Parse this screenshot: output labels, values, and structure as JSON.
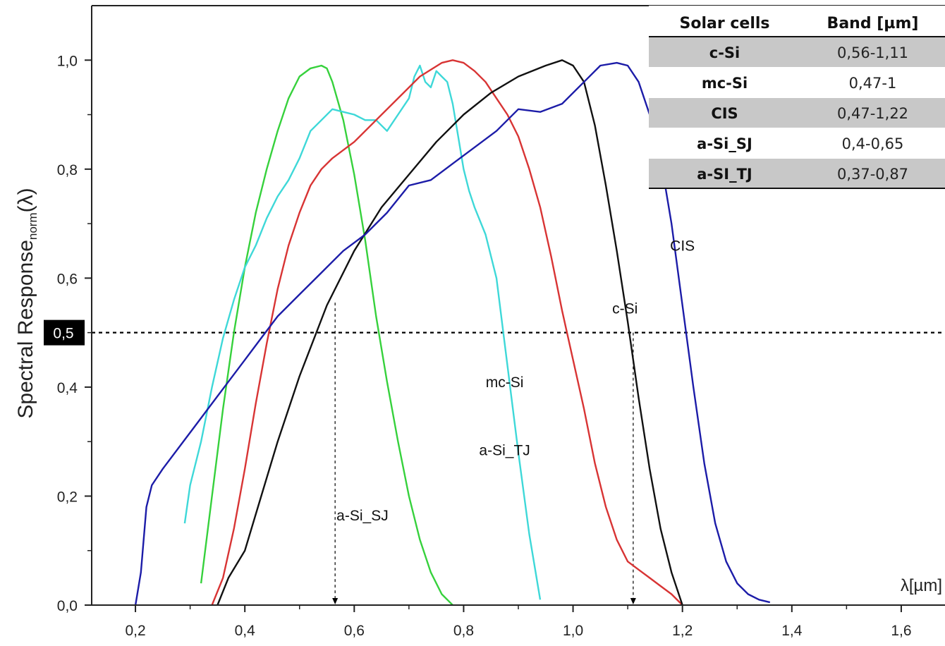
{
  "chart_data": {
    "type": "line",
    "title": "",
    "xlabel": "λ[µm]",
    "ylabel": {
      "main": "Spectral Response",
      "sub": "norm",
      "suffix": "(λ)"
    },
    "xlim": [
      0.12,
      1.68
    ],
    "ylim": [
      0.0,
      1.1
    ],
    "x_ticks": [
      0.2,
      0.4,
      0.6,
      0.8,
      1.0,
      1.2,
      1.4,
      1.6
    ],
    "x_tick_labels": [
      "0,2",
      "0,4",
      "0,6",
      "0,8",
      "1,0",
      "1,2",
      "1,4",
      "1,6"
    ],
    "y_ticks": [
      0.0,
      0.2,
      0.4,
      0.6,
      0.8,
      1.0
    ],
    "y_tick_labels": [
      "0,0",
      "0,2",
      "0,4",
      "0,6",
      "0,8",
      "1,0"
    ],
    "highlight": {
      "value": 0.5,
      "label": "0,5",
      "line_style": "dashed",
      "color": "#000000"
    },
    "markers": [
      {
        "x": 0.565,
        "from": 0.555,
        "to": 0.0
      },
      {
        "x": 1.11,
        "from": 0.5,
        "to": 0.0
      }
    ],
    "series": [
      {
        "name": "a-Si_SJ",
        "color": "#36d13c",
        "label": {
          "text": "a-Si_SJ",
          "x": 0.615,
          "y": 0.155
        },
        "x": [
          0.32,
          0.34,
          0.36,
          0.38,
          0.4,
          0.42,
          0.44,
          0.46,
          0.48,
          0.5,
          0.52,
          0.54,
          0.55,
          0.56,
          0.58,
          0.6,
          0.62,
          0.64,
          0.66,
          0.68,
          0.7,
          0.72,
          0.74,
          0.76,
          0.78
        ],
        "y": [
          0.04,
          0.2,
          0.36,
          0.5,
          0.62,
          0.72,
          0.8,
          0.87,
          0.93,
          0.97,
          0.985,
          0.99,
          0.985,
          0.96,
          0.89,
          0.79,
          0.67,
          0.53,
          0.41,
          0.3,
          0.2,
          0.12,
          0.06,
          0.02,
          0.0
        ]
      },
      {
        "name": "a-Si_TJ",
        "color": "#3ed8d8",
        "label": {
          "text": "a-Si_TJ",
          "x": 0.875,
          "y": 0.275
        },
        "x": [
          0.29,
          0.3,
          0.32,
          0.34,
          0.36,
          0.38,
          0.4,
          0.42,
          0.44,
          0.46,
          0.48,
          0.5,
          0.52,
          0.54,
          0.56,
          0.58,
          0.6,
          0.62,
          0.64,
          0.66,
          0.68,
          0.7,
          0.71,
          0.72,
          0.73,
          0.74,
          0.75,
          0.76,
          0.77,
          0.78,
          0.79,
          0.8,
          0.81,
          0.82,
          0.84,
          0.86,
          0.88,
          0.9,
          0.92,
          0.94
        ],
        "y": [
          0.15,
          0.22,
          0.3,
          0.4,
          0.49,
          0.56,
          0.62,
          0.66,
          0.71,
          0.75,
          0.78,
          0.82,
          0.87,
          0.89,
          0.91,
          0.905,
          0.9,
          0.89,
          0.89,
          0.87,
          0.9,
          0.93,
          0.97,
          0.99,
          0.96,
          0.95,
          0.98,
          0.97,
          0.96,
          0.92,
          0.86,
          0.8,
          0.76,
          0.73,
          0.68,
          0.6,
          0.44,
          0.28,
          0.13,
          0.01
        ]
      },
      {
        "name": "mc-Si",
        "color": "#d83434",
        "label": {
          "text": "mc-Si",
          "x": 0.875,
          "y": 0.4
        },
        "x": [
          0.34,
          0.36,
          0.38,
          0.4,
          0.42,
          0.44,
          0.46,
          0.48,
          0.5,
          0.52,
          0.54,
          0.56,
          0.6,
          0.64,
          0.68,
          0.72,
          0.76,
          0.78,
          0.8,
          0.82,
          0.84,
          0.86,
          0.88,
          0.9,
          0.92,
          0.94,
          0.96,
          0.98,
          1.0,
          1.02,
          1.04,
          1.06,
          1.08,
          1.1,
          1.12,
          1.14,
          1.16,
          1.18,
          1.2
        ],
        "y": [
          0.0,
          0.05,
          0.14,
          0.25,
          0.37,
          0.48,
          0.58,
          0.66,
          0.72,
          0.77,
          0.8,
          0.82,
          0.85,
          0.89,
          0.93,
          0.97,
          0.995,
          1.0,
          0.995,
          0.98,
          0.96,
          0.93,
          0.9,
          0.86,
          0.8,
          0.73,
          0.64,
          0.54,
          0.45,
          0.36,
          0.26,
          0.18,
          0.12,
          0.08,
          0.065,
          0.05,
          0.035,
          0.02,
          0.0
        ]
      },
      {
        "name": "c-Si",
        "color": "#111111",
        "label": {
          "text": "c-Si",
          "x": 1.095,
          "y": 0.535
        },
        "x": [
          0.35,
          0.37,
          0.4,
          0.43,
          0.46,
          0.5,
          0.55,
          0.6,
          0.65,
          0.7,
          0.75,
          0.8,
          0.85,
          0.9,
          0.95,
          0.98,
          1.0,
          1.02,
          1.04,
          1.06,
          1.08,
          1.1,
          1.12,
          1.14,
          1.16,
          1.18,
          1.2
        ],
        "y": [
          0.0,
          0.05,
          0.1,
          0.2,
          0.3,
          0.42,
          0.55,
          0.65,
          0.73,
          0.79,
          0.85,
          0.9,
          0.94,
          0.97,
          0.99,
          1.0,
          0.99,
          0.96,
          0.88,
          0.77,
          0.65,
          0.52,
          0.38,
          0.25,
          0.14,
          0.06,
          0.0
        ]
      },
      {
        "name": "CIS",
        "color": "#1c1ca8",
        "label": {
          "text": "CIS",
          "x": 1.2,
          "y": 0.65
        },
        "x": [
          0.2,
          0.21,
          0.22,
          0.23,
          0.25,
          0.28,
          0.31,
          0.34,
          0.37,
          0.4,
          0.43,
          0.46,
          0.5,
          0.54,
          0.58,
          0.62,
          0.66,
          0.7,
          0.74,
          0.78,
          0.82,
          0.86,
          0.9,
          0.94,
          0.98,
          1.02,
          1.05,
          1.08,
          1.1,
          1.12,
          1.14,
          1.16,
          1.18,
          1.2,
          1.22,
          1.24,
          1.26,
          1.28,
          1.3,
          1.32,
          1.34,
          1.36
        ],
        "y": [
          0.0,
          0.06,
          0.18,
          0.22,
          0.25,
          0.29,
          0.33,
          0.37,
          0.41,
          0.45,
          0.49,
          0.53,
          0.57,
          0.61,
          0.65,
          0.68,
          0.72,
          0.77,
          0.78,
          0.81,
          0.84,
          0.87,
          0.91,
          0.905,
          0.92,
          0.96,
          0.99,
          0.995,
          0.99,
          0.96,
          0.9,
          0.82,
          0.7,
          0.55,
          0.4,
          0.26,
          0.15,
          0.08,
          0.04,
          0.02,
          0.01,
          0.005
        ]
      }
    ]
  },
  "table": {
    "headers": [
      "Solar cells",
      "Band [µm]"
    ],
    "rows": [
      {
        "cell": "c-Si",
        "band": "0,56-1,11",
        "shaded": true
      },
      {
        "cell": "mc-Si",
        "band": "0,47-1",
        "shaded": false
      },
      {
        "cell": "CIS",
        "band": "0,47-1,22",
        "shaded": true
      },
      {
        "cell": "a-Si_SJ",
        "band": "0,4-0,65",
        "shaded": false
      },
      {
        "cell": "a-SI_TJ",
        "band": "0,37-0,87",
        "shaded": true
      }
    ],
    "shade_color": "#c8c8c8"
  }
}
